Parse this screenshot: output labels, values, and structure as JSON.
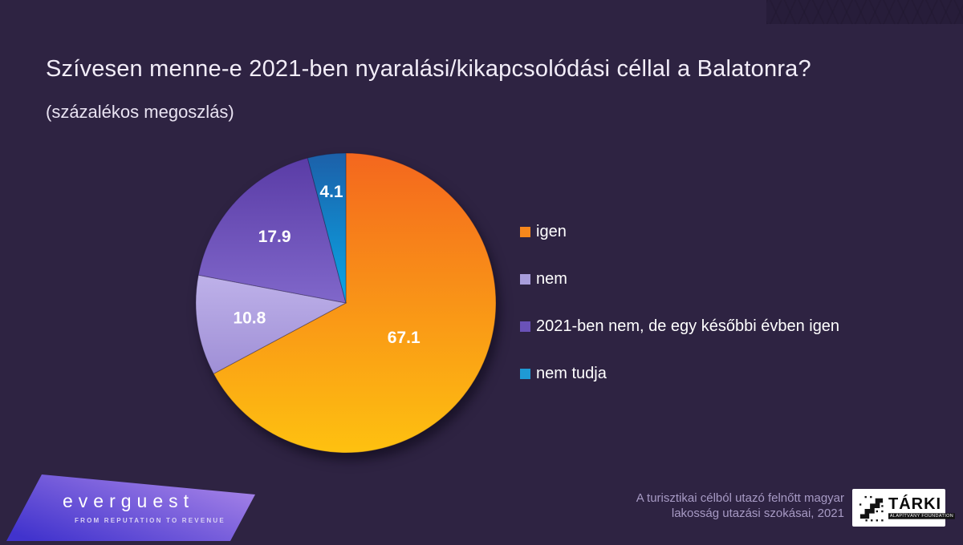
{
  "slide": {
    "title": "Szívesen menne-e 2021-ben nyaralási/kikapcsolódási céllal a Balatonra?",
    "subtitle": "(százalékos megoszlás)",
    "background_color": "#2e2342"
  },
  "chart_data": {
    "type": "pie",
    "title": "Szívesen menne-e 2021-ben nyaralási/kikapcsolódási céllal a Balatonra? (százalékos megoszlás)",
    "categories": [
      "igen",
      "nem",
      "2021-ben nem, de egy későbbi évben igen",
      "nem tudja"
    ],
    "values": [
      67.1,
      10.8,
      17.9,
      4.1
    ],
    "start_angle_deg": 0,
    "direction": "clockwise",
    "legend_position": "right",
    "label_color": "#ffffff",
    "slice_gradients": [
      {
        "from": "#f4671e",
        "to": "#fec110"
      },
      {
        "from": "#beb1e9",
        "to": "#9f8fd6"
      },
      {
        "from": "#5a3ca6",
        "to": "#8067ca"
      },
      {
        "from": "#1c60a9",
        "to": "#0aa7e6"
      }
    ],
    "legend_colors": [
      "#f6871c",
      "#a89ddb",
      "#6a52b8",
      "#1f9ad4"
    ]
  },
  "footer": {
    "brand": "everguest",
    "brand_tagline": "FROM REPUTATION TO REVENUE",
    "brand_gradient": {
      "from": "#4133cd",
      "to": "#ab87e9"
    },
    "source_line1": "A turisztikai célból utazó felnőtt magyar",
    "source_line2": "lakosság utazási szokásai, 2021",
    "tarki_label": "TÁRKI",
    "tarki_sub": "ALAPÍTVÁNY FOUNDATION"
  }
}
